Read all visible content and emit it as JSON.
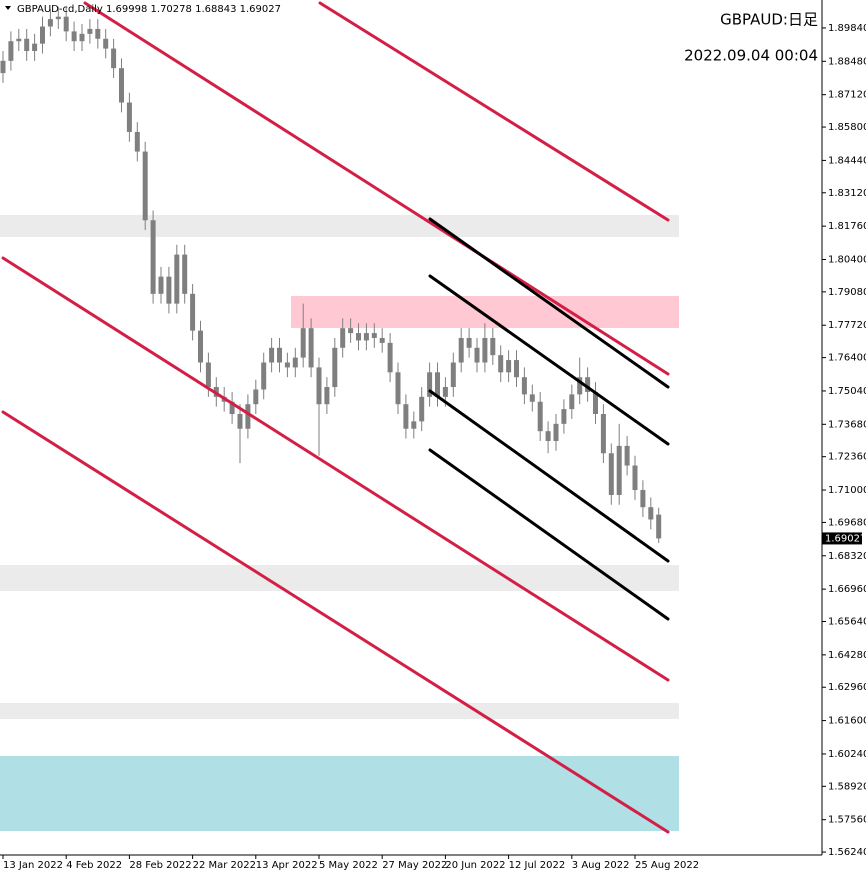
{
  "chart_data": {
    "type": "candlestick",
    "title": "GBPAUD-cd,Daily",
    "annotations": [
      "GBPAUD:日足",
      "2022.09.04 00:04"
    ],
    "color": "#7f7f7f",
    "categories": [
      "13 Jan 2022",
      null,
      null,
      null,
      null,
      null,
      null,
      null,
      "4 Feb 2022",
      null,
      null,
      null,
      null,
      null,
      null,
      null,
      "28 Feb 2022",
      null,
      null,
      null,
      null,
      null,
      null,
      null,
      "22 Mar 2022",
      null,
      null,
      null,
      null,
      null,
      null,
      null,
      "13 Apr 2022",
      null,
      null,
      null,
      null,
      null,
      null,
      null,
      "5 May 2022",
      null,
      null,
      null,
      null,
      null,
      null,
      null,
      "27 May 2022",
      null,
      null,
      null,
      null,
      null,
      null,
      null,
      "20 Jun 2022",
      null,
      null,
      null,
      null,
      null,
      null,
      null,
      "12 Jul 2022",
      null,
      null,
      null,
      null,
      null,
      null,
      null,
      "3 Aug 2022",
      null,
      null,
      null,
      null,
      null,
      null,
      null,
      "25 Aug 2022",
      null,
      null,
      null
    ],
    "open": [
      1.88,
      1.885,
      1.893,
      1.894,
      1.889,
      1.892,
      1.899,
      1.902,
      1.903,
      1.897,
      1.893,
      1.896,
      1.898,
      1.894,
      1.89,
      1.882,
      1.868,
      1.856,
      1.848,
      1.82,
      1.79,
      1.797,
      1.786,
      1.806,
      1.79,
      1.775,
      1.762,
      1.752,
      1.748,
      1.746,
      1.741,
      1.735,
      1.745,
      1.751,
      1.762,
      1.768,
      1.762,
      1.76,
      1.764,
      1.776,
      1.76,
      1.745,
      1.752,
      1.768,
      1.776,
      1.774,
      1.771,
      1.774,
      1.772,
      1.77,
      1.758,
      1.745,
      1.735,
      1.738,
      1.748,
      1.758,
      1.748,
      1.752,
      1.762,
      1.772,
      1.768,
      1.762,
      1.772,
      1.765,
      1.758,
      1.763,
      1.756,
      1.749,
      1.746,
      1.734,
      1.73,
      1.737,
      1.743,
      1.749,
      1.756,
      1.75,
      1.741,
      1.725,
      1.708,
      1.728,
      1.72,
      1.71,
      1.703,
      1.69998
    ],
    "high": [
      1.889,
      1.897,
      1.898,
      1.898,
      1.896,
      1.903,
      1.906,
      1.907,
      1.907,
      1.901,
      1.9,
      1.902,
      1.902,
      1.898,
      1.894,
      1.886,
      1.872,
      1.86,
      1.852,
      1.824,
      1.801,
      1.801,
      1.81,
      1.81,
      1.794,
      1.779,
      1.766,
      1.756,
      1.752,
      1.75,
      1.745,
      1.749,
      1.755,
      1.766,
      1.772,
      1.772,
      1.766,
      1.768,
      1.786,
      1.78,
      1.764,
      1.756,
      1.772,
      1.78,
      1.78,
      1.778,
      1.778,
      1.778,
      1.776,
      1.774,
      1.762,
      1.749,
      1.742,
      1.752,
      1.762,
      1.762,
      1.756,
      1.766,
      1.776,
      1.776,
      1.772,
      1.778,
      1.776,
      1.769,
      1.767,
      1.767,
      1.76,
      1.753,
      1.75,
      1.738,
      1.741,
      1.747,
      1.753,
      1.764,
      1.76,
      1.754,
      1.745,
      1.729,
      1.737,
      1.732,
      1.724,
      1.714,
      1.707,
      1.70278
    ],
    "low": [
      1.876,
      1.881,
      1.889,
      1.885,
      1.885,
      1.888,
      1.895,
      1.898,
      1.893,
      1.889,
      1.889,
      1.892,
      1.89,
      1.886,
      1.878,
      1.864,
      1.852,
      1.844,
      1.816,
      1.786,
      1.786,
      1.782,
      1.782,
      1.786,
      1.771,
      1.758,
      1.748,
      1.744,
      1.742,
      1.737,
      1.721,
      1.731,
      1.741,
      1.747,
      1.758,
      1.758,
      1.756,
      1.756,
      1.76,
      1.756,
      1.724,
      1.741,
      1.748,
      1.764,
      1.77,
      1.767,
      1.767,
      1.768,
      1.766,
      1.754,
      1.741,
      1.731,
      1.731,
      1.734,
      1.744,
      1.744,
      1.744,
      1.748,
      1.758,
      1.764,
      1.758,
      1.758,
      1.761,
      1.754,
      1.754,
      1.752,
      1.745,
      1.742,
      1.73,
      1.725,
      1.726,
      1.733,
      1.739,
      1.745,
      1.746,
      1.737,
      1.721,
      1.704,
      1.704,
      1.716,
      1.706,
      1.699,
      1.694,
      1.68843
    ],
    "close": [
      1.885,
      1.893,
      1.894,
      1.889,
      1.892,
      1.899,
      1.902,
      1.903,
      1.897,
      1.893,
      1.896,
      1.898,
      1.894,
      1.89,
      1.882,
      1.868,
      1.856,
      1.848,
      1.82,
      1.79,
      1.797,
      1.786,
      1.806,
      1.79,
      1.775,
      1.762,
      1.752,
      1.748,
      1.746,
      1.741,
      1.735,
      1.745,
      1.751,
      1.762,
      1.768,
      1.762,
      1.76,
      1.764,
      1.776,
      1.76,
      1.745,
      1.752,
      1.768,
      1.776,
      1.774,
      1.771,
      1.774,
      1.772,
      1.77,
      1.758,
      1.745,
      1.735,
      1.738,
      1.748,
      1.758,
      1.748,
      1.752,
      1.762,
      1.772,
      1.768,
      1.762,
      1.772,
      1.765,
      1.758,
      1.763,
      1.756,
      1.749,
      1.746,
      1.734,
      1.73,
      1.737,
      1.743,
      1.749,
      1.756,
      1.75,
      1.741,
      1.725,
      1.708,
      1.728,
      1.72,
      1.71,
      1.703,
      1.698,
      1.69027
    ],
    "ylim": [
      1.5612,
      1.9098
    ],
    "yticks": [
      {
        "value": 1.8984,
        "label": "1.89840"
      },
      {
        "value": 1.8848,
        "label": "1.88480"
      },
      {
        "value": 1.8712,
        "label": "1.87120"
      },
      {
        "value": 1.858,
        "label": "1.85800"
      },
      {
        "value": 1.8444,
        "label": "1.84440"
      },
      {
        "value": 1.8312,
        "label": "1.83120"
      },
      {
        "value": 1.8176,
        "label": "1.81760"
      },
      {
        "value": 1.804,
        "label": "1.80400"
      },
      {
        "value": 1.7908,
        "label": "1.79080"
      },
      {
        "value": 1.7772,
        "label": "1.77720"
      },
      {
        "value": 1.764,
        "label": "1.76400"
      },
      {
        "value": 1.7504,
        "label": "1.75040"
      },
      {
        "value": 1.7368,
        "label": "1.73680"
      },
      {
        "value": 1.7236,
        "label": "1.72360"
      },
      {
        "value": 1.71,
        "label": "1.71000"
      },
      {
        "value": 1.6968,
        "label": "1.69680"
      },
      {
        "value": 1.6832,
        "label": "1.68320"
      },
      {
        "value": 1.6696,
        "label": "1.66960"
      },
      {
        "value": 1.6564,
        "label": "1.65640"
      },
      {
        "value": 1.6428,
        "label": "1.64280"
      },
      {
        "value": 1.6296,
        "label": "1.62960"
      },
      {
        "value": 1.616,
        "label": "1.61600"
      },
      {
        "value": 1.6024,
        "label": "1.60240"
      },
      {
        "value": 1.5892,
        "label": "1.58920"
      },
      {
        "value": 1.5756,
        "label": "1.57560"
      },
      {
        "value": 1.5624,
        "label": "1.56240"
      }
    ]
  }
}
